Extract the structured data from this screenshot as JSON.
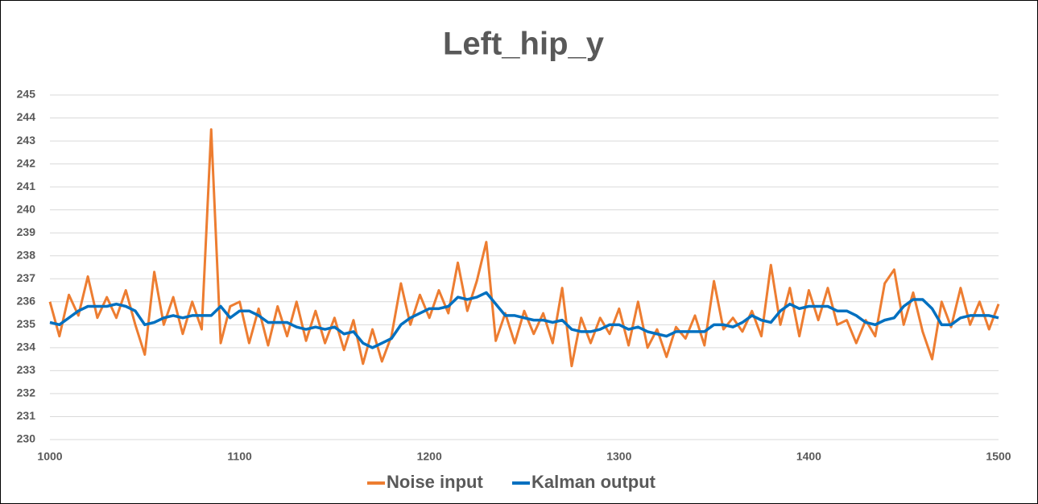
{
  "chart_data": {
    "type": "line",
    "title": "Left_hip_y",
    "x": [
      1000,
      1005,
      1010,
      1015,
      1020,
      1025,
      1030,
      1035,
      1040,
      1045,
      1050,
      1055,
      1060,
      1065,
      1070,
      1075,
      1080,
      1085,
      1090,
      1095,
      1100,
      1105,
      1110,
      1115,
      1120,
      1125,
      1130,
      1135,
      1140,
      1145,
      1150,
      1155,
      1160,
      1165,
      1170,
      1175,
      1180,
      1185,
      1190,
      1195,
      1200,
      1205,
      1210,
      1215,
      1220,
      1225,
      1230,
      1235,
      1240,
      1245,
      1250,
      1255,
      1260,
      1265,
      1270,
      1275,
      1280,
      1285,
      1290,
      1295,
      1300,
      1305,
      1310,
      1315,
      1320,
      1325,
      1330,
      1335,
      1340,
      1345,
      1350,
      1355,
      1360,
      1365,
      1370,
      1375,
      1380,
      1385,
      1390,
      1395,
      1400,
      1405,
      1410,
      1415,
      1420,
      1425,
      1430,
      1435,
      1440,
      1445,
      1450,
      1455,
      1460,
      1465,
      1470,
      1475,
      1480,
      1485,
      1490,
      1495,
      1500
    ],
    "series": [
      {
        "name": "Noise input",
        "color": "#ed7d31",
        "values": [
          236.0,
          234.5,
          236.3,
          235.4,
          237.1,
          235.3,
          236.2,
          235.3,
          236.5,
          235.0,
          233.7,
          237.3,
          235.0,
          236.2,
          234.6,
          236.0,
          234.8,
          243.5,
          234.2,
          235.8,
          236.0,
          234.2,
          235.7,
          234.1,
          235.8,
          234.5,
          236.0,
          234.3,
          235.6,
          234.2,
          235.3,
          233.9,
          235.2,
          233.3,
          234.8,
          233.4,
          234.5,
          236.8,
          235.0,
          236.3,
          235.3,
          236.5,
          235.5,
          237.7,
          235.6,
          236.9,
          238.6,
          234.3,
          235.5,
          234.2,
          235.6,
          234.6,
          235.5,
          234.2,
          236.6,
          233.2,
          235.3,
          234.2,
          235.3,
          234.6,
          235.7,
          234.1,
          236.0,
          234.0,
          234.8,
          233.6,
          234.9,
          234.4,
          235.4,
          234.1,
          236.9,
          234.8,
          235.3,
          234.7,
          235.6,
          234.5,
          237.6,
          235.0,
          236.6,
          234.5,
          236.5,
          235.2,
          236.6,
          235.0,
          235.2,
          234.2,
          235.2,
          234.5,
          236.8,
          237.4,
          235.0,
          236.4,
          234.7,
          233.5,
          236.0,
          234.9,
          236.6,
          235.0,
          236.0,
          234.8,
          235.9
        ]
      },
      {
        "name": "Kalman output",
        "color": "#0070c0",
        "values": [
          235.1,
          235.0,
          235.3,
          235.6,
          235.8,
          235.8,
          235.8,
          235.9,
          235.8,
          235.6,
          235.0,
          235.1,
          235.3,
          235.4,
          235.3,
          235.4,
          235.4,
          235.4,
          235.8,
          235.3,
          235.6,
          235.6,
          235.4,
          235.1,
          235.1,
          235.1,
          234.9,
          234.8,
          234.9,
          234.8,
          234.9,
          234.6,
          234.7,
          234.2,
          234.0,
          234.2,
          234.4,
          235.0,
          235.3,
          235.5,
          235.7,
          235.7,
          235.8,
          236.2,
          236.1,
          236.2,
          236.4,
          235.9,
          235.4,
          235.4,
          235.3,
          235.2,
          235.2,
          235.1,
          235.2,
          234.8,
          234.7,
          234.7,
          234.8,
          235.0,
          235.0,
          234.8,
          234.9,
          234.7,
          234.6,
          234.5,
          234.7,
          234.7,
          234.7,
          234.7,
          235.0,
          235.0,
          234.9,
          235.1,
          235.4,
          235.2,
          235.1,
          235.6,
          235.9,
          235.7,
          235.8,
          235.8,
          235.8,
          235.6,
          235.6,
          235.4,
          235.1,
          235.0,
          235.2,
          235.3,
          235.8,
          236.1,
          236.1,
          235.7,
          235.0,
          235.0,
          235.3,
          235.4,
          235.4,
          235.4,
          235.3
        ]
      }
    ],
    "xlim": [
      1000,
      1500
    ],
    "xticks": [
      1000,
      1100,
      1200,
      1300,
      1400,
      1500
    ],
    "ylim": [
      230,
      245
    ],
    "yticks": [
      230,
      231,
      232,
      233,
      234,
      235,
      236,
      237,
      238,
      239,
      240,
      241,
      242,
      243,
      244,
      245
    ],
    "grid": true,
    "legend": "bottom"
  }
}
